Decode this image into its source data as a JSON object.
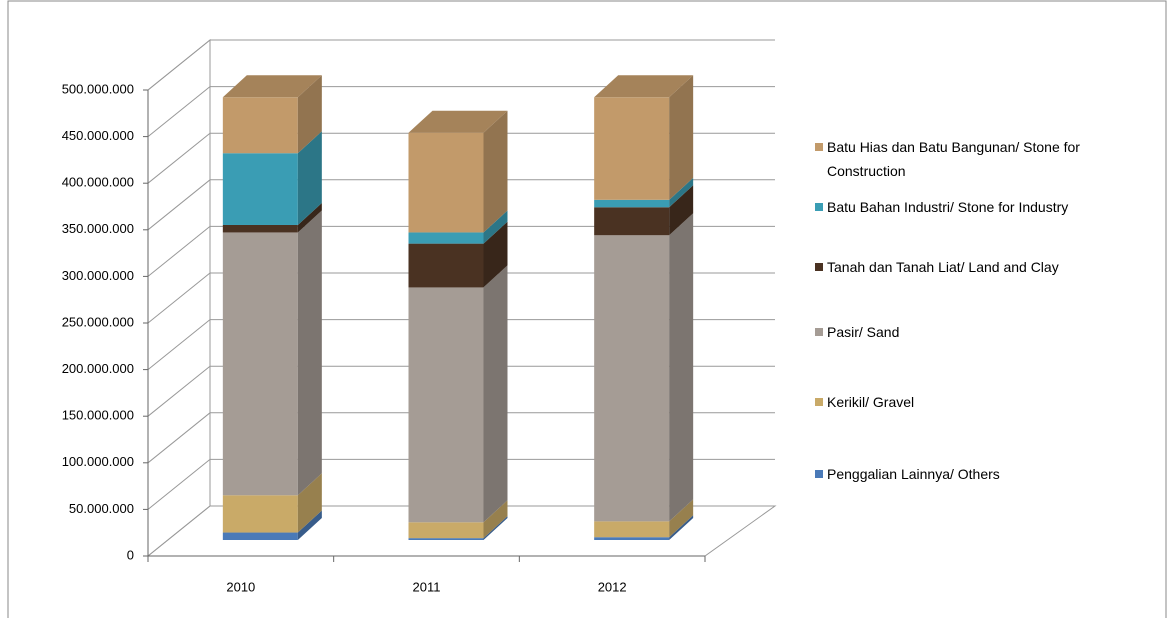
{
  "chart_data": {
    "type": "bar3d_stacked",
    "categories": [
      "2010",
      "2011",
      "2012"
    ],
    "series": [
      {
        "name": "Penggalian Lainnya/ Others",
        "color": "#4a7ab8",
        "values": [
          8000000,
          2000000,
          3000000
        ]
      },
      {
        "name": "Kerikil/ Gravel",
        "color": "#c9aa68",
        "values": [
          40000000,
          17000000,
          17000000
        ]
      },
      {
        "name": "Pasir/ Sand",
        "color": "#a59c95",
        "values": [
          282000000,
          252000000,
          307000000
        ]
      },
      {
        "name": "Tanah dan Tanah Liat/ Land and Clay",
        "color": "#4a3222",
        "values": [
          8000000,
          47000000,
          30000000
        ]
      },
      {
        "name": "Batu Bahan Industri/ Stone for Industry",
        "color": "#3a9db4",
        "values": [
          77000000,
          12000000,
          8000000
        ]
      },
      {
        "name": "Batu Hias dan Batu Bangunan/ Stone for Construction",
        "color": "#c29a6a",
        "values": [
          60000000,
          107000000,
          110000000
        ]
      }
    ],
    "ylim": [
      0,
      500000000
    ],
    "yticks": [
      0,
      {
        "value": 50000000,
        "label": "50.000.000"
      },
      {
        "value": 100000000,
        "label": "100.000.000"
      },
      {
        "value": 150000000,
        "label": "150.000.000"
      },
      {
        "value": 200000000,
        "label": "200.000.000"
      },
      {
        "value": 250000000,
        "label": "250.000.000"
      },
      {
        "value": 300000000,
        "label": "300.000.000"
      },
      {
        "value": 350000000,
        "label": "350.000.000"
      },
      {
        "value": 400000000,
        "label": "400.000.000"
      },
      {
        "value": 450000000,
        "label": "450.000.000"
      },
      {
        "value": 500000000,
        "label": "500.000.000"
      }
    ],
    "grid": true
  }
}
